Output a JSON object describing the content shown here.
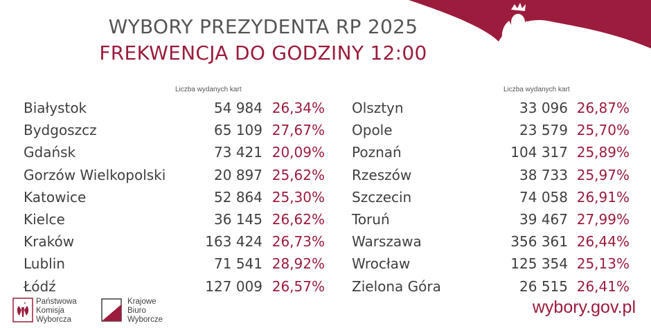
{
  "header": {
    "title": "WYBORY PREZYDENTA RP 2025",
    "subtitle": "FREKWENCJA DO GODZINY 12:00"
  },
  "colors": {
    "accent": "#9b1c3c",
    "text": "#4a4a4a"
  },
  "table_left": {
    "column_header": "Liczba wydanych kart",
    "rows": [
      {
        "city": "Białystok",
        "count": "54 984",
        "pct": "26,34%"
      },
      {
        "city": "Bydgoszcz",
        "count": "65 109",
        "pct": "27,67%"
      },
      {
        "city": "Gdańsk",
        "count": "73 421",
        "pct": "20,09%"
      },
      {
        "city": "Gorzów Wielkopolski",
        "count": "20 897",
        "pct": "25,62%"
      },
      {
        "city": "Katowice",
        "count": "52 864",
        "pct": "25,30%"
      },
      {
        "city": "Kielce",
        "count": "36 145",
        "pct": "26,62%"
      },
      {
        "city": "Kraków",
        "count": "163 424",
        "pct": "26,73%"
      },
      {
        "city": "Lublin",
        "count": "71 541",
        "pct": "28,92%"
      },
      {
        "city": "Łódź",
        "count": "127 009",
        "pct": "26,57%"
      }
    ]
  },
  "table_right": {
    "column_header": "Liczba wydanych kart",
    "rows": [
      {
        "city": "Olsztyn",
        "count": "33 096",
        "pct": "26,87%"
      },
      {
        "city": "Opole",
        "count": "23 579",
        "pct": "25,70%"
      },
      {
        "city": "Poznań",
        "count": "104 317",
        "pct": "25,89%"
      },
      {
        "city": "Rzeszów",
        "count": "38 733",
        "pct": "25,97%"
      },
      {
        "city": "Szczecin",
        "count": "74 058",
        "pct": "26,91%"
      },
      {
        "city": "Toruń",
        "count": "39 467",
        "pct": "27,99%"
      },
      {
        "city": "Warszawa",
        "count": "356 361",
        "pct": "26,44%"
      },
      {
        "city": "Wrocław",
        "count": "125 354",
        "pct": "25,13%"
      },
      {
        "city": "Zielona Góra",
        "count": "26 515",
        "pct": "26,41%"
      }
    ]
  },
  "footer": {
    "pkw": [
      "Państwowa",
      "Komisja",
      "Wyborcza"
    ],
    "kbw": [
      "Krajowe",
      "Biuro",
      "Wyborcze"
    ],
    "url": "wybory.gov.pl"
  },
  "icons": {
    "pkw_logo": "eagle-emblem-icon",
    "kbw_logo": "kbw-flag-icon",
    "banner": "eagle-banner-icon"
  }
}
